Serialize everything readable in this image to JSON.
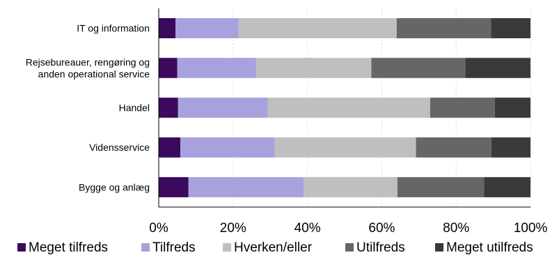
{
  "chart_data": {
    "type": "bar",
    "orientation": "horizontal",
    "stacked": "percent",
    "categories": [
      "IT og information",
      "Rejsebureauer, rengøring og anden operational service",
      "Handel",
      "Vidensservice",
      "Bygge og anlæg"
    ],
    "category_lines": [
      [
        "IT og information"
      ],
      [
        "Rejsebureauer, rengøring og",
        "anden operational service"
      ],
      [
        "Handel"
      ],
      [
        "Vidensservice"
      ],
      [
        "Bygge og anlæg"
      ]
    ],
    "series": [
      {
        "name": "Meget tilfreds",
        "color": "#3b0a5c",
        "values": [
          4.5,
          5.0,
          5.2,
          5.8,
          8.0
        ]
      },
      {
        "name": "Tilfreds",
        "color": "#a7a2de",
        "values": [
          17.0,
          21.2,
          24.1,
          25.4,
          31.0
        ]
      },
      {
        "name": "Hverken/eller",
        "color": "#bfbfbf",
        "values": [
          42.5,
          31.0,
          43.7,
          38.0,
          25.2
        ]
      },
      {
        "name": "Utilfreds",
        "color": "#666666",
        "values": [
          25.4,
          25.3,
          17.4,
          20.3,
          23.3
        ]
      },
      {
        "name": "Meget utilfreds",
        "color": "#3a3a3d",
        "values": [
          10.6,
          17.5,
          9.6,
          10.5,
          12.5
        ]
      }
    ],
    "xlim": [
      0,
      100
    ],
    "xticks": [
      "0%",
      "20%",
      "40%",
      "60%",
      "80%",
      "100%"
    ],
    "grid": true,
    "legend": "bottom"
  }
}
